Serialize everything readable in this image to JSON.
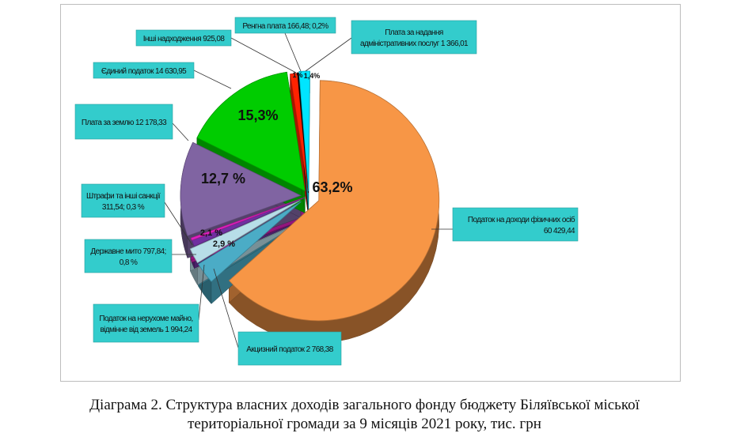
{
  "chart_data": {
    "type": "pie",
    "slices": [
      {
        "name": "Податок на доходи фізичних осіб",
        "value": 60429.44,
        "percent_label": "63,2%",
        "color": "#f79646"
      },
      {
        "name": "Акцизний податок",
        "value": 2768.38,
        "percent_label": "2,9 %",
        "color": "#4bacc6"
      },
      {
        "name": "Податок на нерухоме майно, відмінне від земель",
        "value": 1994.24,
        "percent_label": "2,1 %",
        "color": "#b7dee8"
      },
      {
        "name": "Державне мито",
        "value": 797.84,
        "percent_label": "",
        "color": "#7030a0"
      },
      {
        "name": "Штрафи та інші санкції",
        "value": 311.54,
        "percent_label": "",
        "color": "#e020c0"
      },
      {
        "name": "Плата за землю",
        "value": 12178.33,
        "percent_label": "12,7 %",
        "color": "#8064a2"
      },
      {
        "name": "Єдиний податок",
        "value": 14630.95,
        "percent_label": "15,3%",
        "color": "#00cc00"
      },
      {
        "name": "Інші надходження",
        "value": 925.08,
        "percent_label": "1%",
        "color": "#ff2200"
      },
      {
        "name": "Ренгна плата",
        "value": 166.48,
        "percent_label": "",
        "color": "#000000"
      },
      {
        "name": "Плата за надання адміністративних послуг",
        "value": 1366.01,
        "percent_label": "1,4%",
        "color": "#00e5ff"
      }
    ],
    "callouts": {
      "pdfo": [
        "Податок на доходи фізичних осіб",
        "60 429,44"
      ],
      "akcyz": [
        "Акцизний податок 2 768,38"
      ],
      "maino": [
        "Податок на нерухоме майно,",
        "відмінне від земель 1 994,24"
      ],
      "myto": [
        "Державне мито 797,84;",
        "0,8 %"
      ],
      "shtraf": [
        "Штрафи та інші санкції",
        "311,54; 0,3 %"
      ],
      "zemlia": [
        "Плата за землю 12 178,33"
      ],
      "yedynyi": [
        "Єдиний податок 14 630,95"
      ],
      "inshi": [
        "Інші надходження 925,08"
      ],
      "renta": [
        "Ренгна плата 166,48; 0,2%"
      ],
      "admin": [
        "Плата за надання",
        "адміністративних послуг 1 366,01"
      ]
    },
    "callout_color": "#33cccc"
  },
  "caption": {
    "line1": "Діаграма 2. Структура власних доходів загального фонду бюджету Біляївської міської",
    "line2": "територіальної громади за 9 місяців 2021 року, тис. грн"
  }
}
